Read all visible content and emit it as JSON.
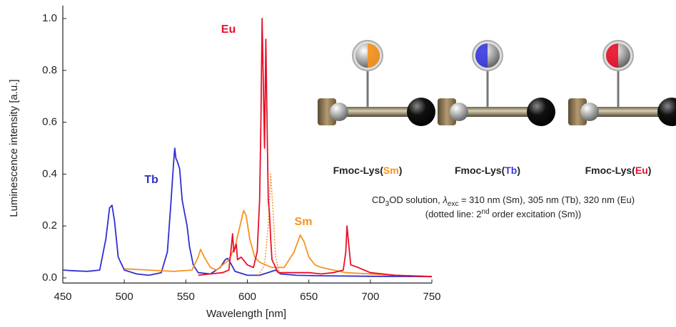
{
  "chart_data": {
    "type": "line",
    "xlabel": "Wavelength [nm]",
    "ylabel": "Luminescence intensity [a.u.]",
    "xlim": [
      450,
      750
    ],
    "ylim": [
      -0.02,
      1.05
    ],
    "xticks": [
      450,
      500,
      550,
      600,
      650,
      700,
      750
    ],
    "yticks": [
      {
        "value": 0,
        "label": "0.0"
      },
      0.2,
      0.4,
      0.6,
      0.8,
      {
        "value": 1,
        "label": "1.0"
      }
    ],
    "series": [
      {
        "name": "Tb",
        "color": "#2f2fd0",
        "x": [
          450,
          460,
          470,
          480,
          485,
          488,
          490,
          492,
          495,
          500,
          510,
          520,
          530,
          535,
          538,
          540,
          541,
          542,
          543,
          545,
          547,
          549,
          551,
          553,
          556,
          560,
          570,
          578,
          582,
          584,
          586,
          590,
          600,
          610,
          620,
          623,
          627,
          640,
          660,
          700,
          750
        ],
        "values": [
          0.03,
          0.027,
          0.025,
          0.03,
          0.15,
          0.27,
          0.28,
          0.22,
          0.08,
          0.03,
          0.015,
          0.01,
          0.02,
          0.1,
          0.3,
          0.44,
          0.5,
          0.46,
          0.45,
          0.42,
          0.3,
          0.25,
          0.2,
          0.12,
          0.05,
          0.02,
          0.015,
          0.04,
          0.07,
          0.075,
          0.06,
          0.025,
          0.01,
          0.01,
          0.025,
          0.03,
          0.015,
          0.01,
          0.008,
          0.006,
          0.005
        ]
      },
      {
        "name": "Sm",
        "color": "#f7931e",
        "x": [
          500,
          520,
          540,
          555,
          560,
          562,
          565,
          570,
          575,
          580,
          585,
          590,
          594,
          597,
          599,
          602,
          606,
          610,
          615,
          620,
          630,
          638,
          643,
          646,
          650,
          655,
          660,
          680,
          700,
          720,
          750
        ],
        "values": [
          0.035,
          0.03,
          0.025,
          0.03,
          0.08,
          0.11,
          0.08,
          0.04,
          0.03,
          0.05,
          0.07,
          0.12,
          0.2,
          0.26,
          0.24,
          0.15,
          0.08,
          0.06,
          0.05,
          0.04,
          0.04,
          0.1,
          0.165,
          0.14,
          0.08,
          0.05,
          0.04,
          0.02,
          0.015,
          0.01,
          0.005
        ]
      },
      {
        "color": "#f7931e",
        "dashed": true,
        "x": [
          609,
          614,
          617,
          619,
          621,
          623,
          626
        ],
        "values": [
          0.01,
          0.05,
          0.2,
          0.4,
          0.25,
          0.08,
          0.02
        ]
      },
      {
        "name": "Eu",
        "color": "#e8102a",
        "x": [
          560,
          570,
          580,
          585,
          587,
          588,
          589,
          591,
          592,
          595,
          600,
          605,
          608,
          610,
          611,
          612,
          613,
          614,
          615,
          616,
          617,
          618,
          619,
          620,
          625,
          640,
          650,
          660,
          670,
          678,
          680,
          681,
          682,
          684,
          690,
          695,
          700,
          720,
          750
        ],
        "values": [
          0.01,
          0.015,
          0.02,
          0.03,
          0.12,
          0.17,
          0.1,
          0.13,
          0.07,
          0.08,
          0.05,
          0.04,
          0.1,
          0.3,
          0.6,
          1.0,
          0.75,
          0.5,
          0.92,
          0.6,
          0.3,
          0.25,
          0.15,
          0.07,
          0.02,
          0.02,
          0.02,
          0.015,
          0.02,
          0.03,
          0.1,
          0.2,
          0.15,
          0.05,
          0.04,
          0.03,
          0.02,
          0.01,
          0.005
        ]
      }
    ],
    "note": [
      "CD",
      "3",
      "OD solution, ",
      "λ",
      "exc",
      " = 310 nm (Sm), 305 nm (Tb), 320 nm (Eu)"
    ],
    "note2": [
      "(dotted line: 2",
      "nd",
      " order excitation (Sm))"
    ],
    "molecules": [
      {
        "prefix": "Fmoc-Lys(",
        "ion": "Sm",
        "suffix": ")",
        "color": "#f7931e"
      },
      {
        "prefix": "Fmoc-Lys(",
        "ion": "Tb",
        "suffix": ")",
        "color": "#3a3ae0"
      },
      {
        "prefix": "Fmoc-Lys(",
        "ion": "Eu",
        "suffix": ")",
        "color": "#e8102a"
      }
    ]
  }
}
